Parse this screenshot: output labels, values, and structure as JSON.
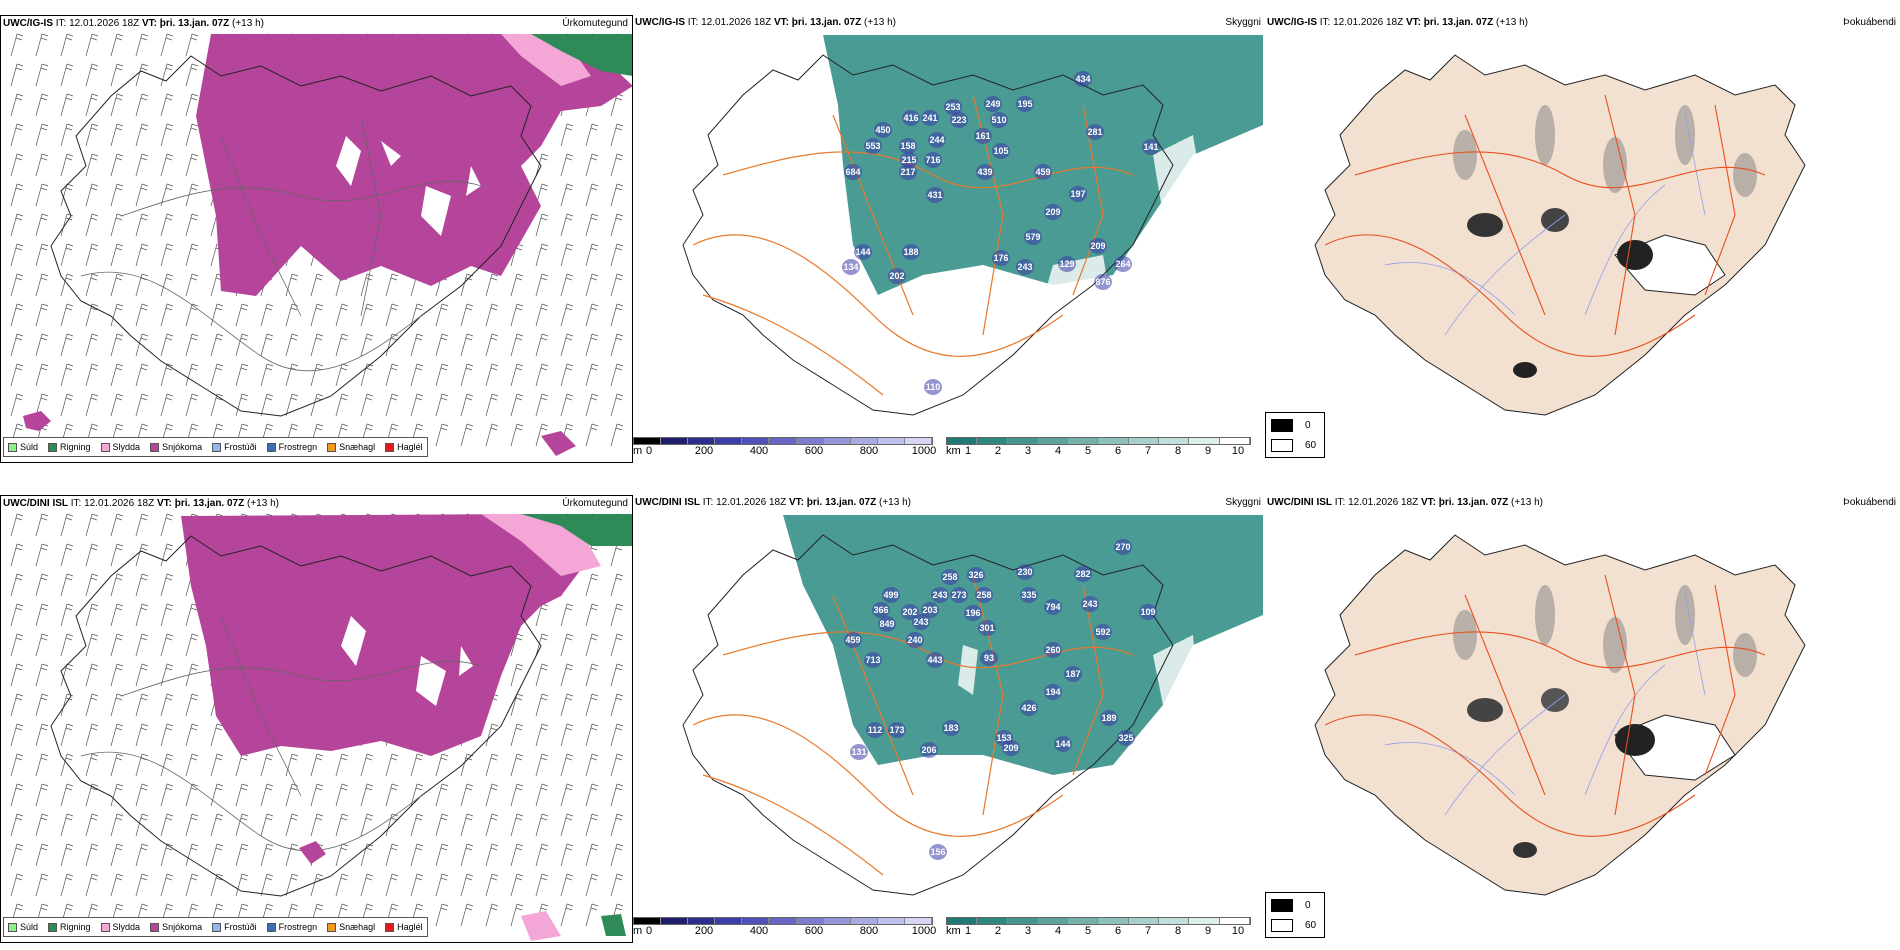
{
  "rows": [
    {
      "model": "UWC/IG-IS",
      "init_label": "IT:",
      "init": "12.01.2026 18Z",
      "valid_label": "VT:",
      "valid": "þri. 13.jan. 07Z",
      "lead": "(+13 h)",
      "ceiling_labels": [
        {
          "t": "450"
        },
        {
          "t": "416"
        },
        {
          "t": "241"
        },
        {
          "t": "253"
        },
        {
          "t": "249"
        },
        {
          "t": "195"
        },
        {
          "t": "434"
        },
        {
          "t": "553"
        },
        {
          "t": "158"
        },
        {
          "t": "244"
        },
        {
          "t": "223"
        },
        {
          "t": "510"
        },
        {
          "t": "281"
        },
        {
          "t": "215"
        },
        {
          "t": "716"
        },
        {
          "t": "161"
        },
        {
          "t": "105"
        },
        {
          "t": "141"
        },
        {
          "t": "684"
        },
        {
          "t": "217"
        },
        {
          "t": "439"
        },
        {
          "t": "459"
        },
        {
          "t": "197"
        },
        {
          "t": "431"
        },
        {
          "t": "209"
        },
        {
          "t": "579"
        },
        {
          "t": "144"
        },
        {
          "t": "188"
        },
        {
          "t": "209"
        },
        {
          "t": "134"
        },
        {
          "t": "176"
        },
        {
          "t": "243"
        },
        {
          "t": "129"
        },
        {
          "t": "264"
        },
        {
          "t": "202"
        },
        {
          "t": "876"
        },
        {
          "t": "110"
        }
      ]
    },
    {
      "model": "UWC/DINI ISL",
      "init_label": "IT:",
      "init": "12.01.2026 18Z",
      "valid_label": "VT:",
      "valid": "þri. 13.jan. 07Z",
      "lead": "(+13 h)",
      "ceiling_labels": [
        {
          "t": "270"
        },
        {
          "t": "258"
        },
        {
          "t": "326"
        },
        {
          "t": "230"
        },
        {
          "t": "282"
        },
        {
          "t": "499"
        },
        {
          "t": "243"
        },
        {
          "t": "273"
        },
        {
          "t": "258"
        },
        {
          "t": "335"
        },
        {
          "t": "243"
        },
        {
          "t": "366"
        },
        {
          "t": "202"
        },
        {
          "t": "203"
        },
        {
          "t": "196"
        },
        {
          "t": "794"
        },
        {
          "t": "109"
        },
        {
          "t": "849"
        },
        {
          "t": "243"
        },
        {
          "t": "301"
        },
        {
          "t": "592"
        },
        {
          "t": "459"
        },
        {
          "t": "240"
        },
        {
          "t": "93"
        },
        {
          "t": "260"
        },
        {
          "t": "713"
        },
        {
          "t": "443"
        },
        {
          "t": "187"
        },
        {
          "t": "194"
        },
        {
          "t": "426"
        },
        {
          "t": "189"
        },
        {
          "t": "112"
        },
        {
          "t": "173"
        },
        {
          "t": "183"
        },
        {
          "t": "153"
        },
        {
          "t": "325"
        },
        {
          "t": "131"
        },
        {
          "t": "206"
        },
        {
          "t": "209"
        },
        {
          "t": "144"
        },
        {
          "t": "156"
        }
      ]
    }
  ],
  "panel_titles": {
    "precip": "Úrkomutegund",
    "visibility": "Skyggni",
    "fog": "Þokuábendi"
  },
  "precip_legend": [
    {
      "label": "Súld",
      "color": "#8fef8f"
    },
    {
      "label": "Rigning",
      "color": "#2e8b57"
    },
    {
      "label": "Slydda",
      "color": "#f4a6d7"
    },
    {
      "label": "Snjókoma",
      "color": "#b5459b"
    },
    {
      "label": "Frostúði",
      "color": "#8fb8ef"
    },
    {
      "label": "Frostregn",
      "color": "#3a6fb8"
    },
    {
      "label": "Snæhagl",
      "color": "#ef9a1e"
    },
    {
      "label": "Haglél",
      "color": "#e31a1c"
    }
  ],
  "ceiling_bar": {
    "unit": "m",
    "ticks": [
      "0",
      "200",
      "400",
      "600",
      "800",
      "1000"
    ],
    "colors": [
      "#000000",
      "#1f1f6e",
      "#2d2d8f",
      "#3d3da8",
      "#5050b8",
      "#6666c4",
      "#7d7dcf",
      "#9494d9",
      "#aaaae3",
      "#c0c0ec",
      "#d6d6f4"
    ]
  },
  "visibility_bar": {
    "unit": "km",
    "ticks": [
      "1",
      "2",
      "3",
      "4",
      "5",
      "6",
      "7",
      "8",
      "9",
      "10"
    ],
    "colors": [
      "#1e7a72",
      "#2f877f",
      "#44958d",
      "#5ba39b",
      "#74b2ab",
      "#8ec1bb",
      "#a8d0cb",
      "#c2dfdb",
      "#dcefec",
      "#ffffff"
    ]
  },
  "fog_scale": {
    "high": "0",
    "low": "60"
  },
  "colors": {
    "snow": "#b5459b",
    "sleet": "#f4a6d7",
    "rain": "#2e8b57",
    "drizzle": "#8fef8f",
    "teal": "#2a8a80",
    "roads": "#e8782a",
    "land_fog": "#f2e0d0",
    "rivers": "#8f9ff0",
    "ceiling": "#3d3da8"
  }
}
